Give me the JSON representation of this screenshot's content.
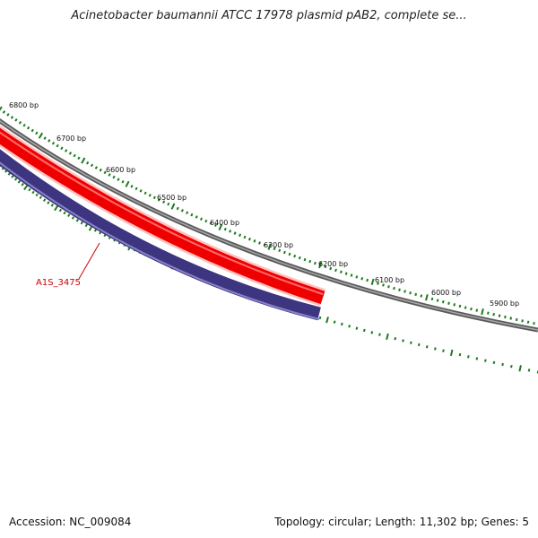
{
  "title": "Acinetobacter baumannii ATCC 17978 plasmid pAB2, complete se...",
  "footer": {
    "accession": "Accession: NC_009084",
    "summary": "Topology: circular; Length: 11,302 bp; Genes: 5"
  },
  "colors": {
    "backbone": "#7a7a7a",
    "ticks": "#1e7a1e",
    "forward_gene": "#ff0000",
    "reverse_gene": "#3d3580",
    "gene_label": "#cc0000"
  },
  "ticks": [
    {
      "label": "6800 bp"
    },
    {
      "label": "6700 bp"
    },
    {
      "label": "6600 bp"
    },
    {
      "label": "6500 bp"
    },
    {
      "label": "6400 bp"
    },
    {
      "label": "6300 bp"
    },
    {
      "label": "6200 bp"
    },
    {
      "label": "6100 bp"
    },
    {
      "label": "6000 bp"
    },
    {
      "label": "5900 bp"
    }
  ],
  "genes": [
    {
      "strand": "forward"
    },
    {
      "strand": "reverse",
      "label": "A1S_3475"
    }
  ]
}
